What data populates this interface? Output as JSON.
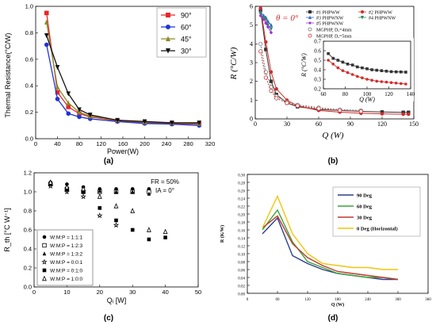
{
  "chart_data": [
    {
      "id": "a",
      "type": "line",
      "panel_label": "(a)",
      "xlabel": "Power(W)",
      "ylabel": "Thermal Resistance(°C/W)",
      "xlim": [
        0,
        320
      ],
      "ylim": [
        0.0,
        1.0
      ],
      "xticks": [
        "0",
        "40",
        "80",
        "120",
        "160",
        "200",
        "240",
        "280",
        "320"
      ],
      "yticks": [
        "0.0",
        "0.2",
        "0.4",
        "0.6",
        "0.8",
        "1.0"
      ],
      "legend_position": "top-right",
      "grid": false,
      "series": [
        {
          "name": "90°",
          "color": "#e8262a",
          "marker": "square",
          "x": [
            20,
            40,
            60,
            80,
            100,
            150,
            200,
            250,
            300
          ],
          "y": [
            0.95,
            0.35,
            0.24,
            0.19,
            0.165,
            0.135,
            0.12,
            0.115,
            0.11
          ]
        },
        {
          "name": "60°",
          "color": "#1f35d6",
          "marker": "circle",
          "x": [
            20,
            40,
            60,
            80,
            100,
            150,
            200,
            250,
            300
          ],
          "y": [
            0.71,
            0.3,
            0.19,
            0.165,
            0.15,
            0.13,
            0.115,
            0.11,
            0.1
          ]
        },
        {
          "name": "45°",
          "color": "#8a8a2a",
          "marker": "triangle-up",
          "x": [
            20,
            40,
            60,
            80,
            100,
            150,
            200,
            250,
            300
          ],
          "y": [
            0.88,
            0.39,
            0.27,
            0.2,
            0.17,
            0.14,
            0.125,
            0.12,
            0.115
          ]
        },
        {
          "name": "30°",
          "color": "#111111",
          "marker": "triangle-down",
          "x": [
            20,
            40,
            60,
            80,
            100,
            150,
            200,
            250,
            300
          ],
          "y": [
            0.78,
            0.54,
            0.34,
            0.22,
            0.18,
            0.14,
            0.13,
            0.12,
            0.12
          ]
        }
      ]
    },
    {
      "id": "b",
      "type": "line",
      "panel_label": "(b)",
      "xlabel": "Q (W)",
      "ylabel": "R (°C/W)",
      "annotation": "θ = 0°",
      "xlim": [
        0,
        150
      ],
      "ylim": [
        0,
        6
      ],
      "xticks": [
        "0",
        "30",
        "60",
        "90",
        "120",
        "150"
      ],
      "yticks": [
        "0",
        "1",
        "2",
        "3",
        "4",
        "5",
        "6"
      ],
      "legend_position": "top-right",
      "grid": false,
      "series": [
        {
          "name": "#1 PHPWW",
          "color": "#333333",
          "marker": "square",
          "x": [
            5,
            10,
            15,
            20,
            30,
            40,
            60,
            80,
            100,
            120,
            140,
            145
          ],
          "y": [
            5.8,
            3.7,
            2.0,
            1.3,
            0.85,
            0.65,
            0.5,
            0.45,
            0.4,
            0.37,
            0.35,
            0.35
          ]
        },
        {
          "name": "#2 PHPWW",
          "color": "#d32b2b",
          "marker": "circle",
          "x": [
            5,
            10,
            15,
            20,
            30,
            40,
            60,
            80,
            100,
            120,
            140,
            145
          ],
          "y": [
            5.9,
            4.1,
            2.5,
            1.6,
            1.0,
            0.7,
            0.45,
            0.36,
            0.3,
            0.27,
            0.25,
            0.25
          ]
        },
        {
          "name": "#3 PHPWNW",
          "color": "#3366cc",
          "marker": "triangle-up",
          "x": [
            5,
            8,
            10,
            12,
            15
          ],
          "y": [
            5.7,
            5.5,
            5.4,
            5.2,
            5.0
          ]
        },
        {
          "name": "#4 PHPWNW",
          "color": "#2e8b57",
          "marker": "triangle-down",
          "x": [
            5,
            8,
            10,
            12,
            15
          ],
          "y": [
            5.6,
            5.4,
            5.3,
            5.0,
            4.8
          ]
        },
        {
          "name": "#5 PHPWNW",
          "color": "#9b30d9",
          "marker": "diamond",
          "x": [
            5,
            8,
            10,
            12,
            15
          ],
          "y": [
            5.5,
            5.3,
            5.1,
            4.9,
            4.6
          ]
        },
        {
          "name": "MGPHP, Dₐ=4mm",
          "color": "#777777",
          "marker": "open-circle",
          "x": [
            5,
            10,
            15,
            20,
            30,
            40,
            60,
            80,
            100
          ],
          "y": [
            4.0,
            2.5,
            1.7,
            1.2,
            0.9,
            0.75,
            0.6,
            0.5,
            0.45
          ]
        },
        {
          "name": "MGPHP, Dₐ=5mm",
          "color": "#cc3333",
          "marker": "open-circle",
          "x": [
            5,
            10,
            15,
            20,
            30,
            40,
            60,
            80,
            100
          ],
          "y": [
            3.6,
            2.2,
            1.5,
            1.1,
            0.85,
            0.7,
            0.55,
            0.45,
            0.4
          ]
        }
      ],
      "inset": {
        "xlabel": "Q (W)",
        "ylabel": "R (°C/W)",
        "xlim": [
          55,
          145
        ],
        "ylim": [
          0.2,
          0.7
        ],
        "xticks": [
          "60",
          "80",
          "100",
          "120",
          "140"
        ],
        "yticks": [
          "0.2",
          "0.3",
          "0.4",
          "0.5",
          "0.6",
          "0.7"
        ],
        "series": [
          {
            "name": "#1 PHPWW",
            "color": "#333333",
            "marker": "square",
            "x": [
              60,
              65,
              70,
              75,
              80,
              85,
              90,
              95,
              100,
              105,
              110,
              115,
              120,
              125,
              130,
              135,
              140
            ],
            "y": [
              0.57,
              0.52,
              0.5,
              0.48,
              0.46,
              0.45,
              0.43,
              0.42,
              0.41,
              0.4,
              0.395,
              0.39,
              0.385,
              0.38,
              0.378,
              0.377,
              0.375
            ]
          },
          {
            "name": "#2 PHPWW",
            "color": "#d32b2b",
            "marker": "circle",
            "x": [
              60,
              65,
              70,
              75,
              80,
              85,
              90,
              95,
              100,
              105,
              110,
              115,
              120,
              125,
              130,
              135,
              140
            ],
            "y": [
              0.5,
              0.46,
              0.42,
              0.39,
              0.37,
              0.35,
              0.33,
              0.315,
              0.3,
              0.29,
              0.28,
              0.275,
              0.27,
              0.265,
              0.26,
              0.255,
              0.25
            ]
          }
        ]
      }
    },
    {
      "id": "c",
      "type": "scatter",
      "panel_label": "(c)",
      "xlabel": "Qᵢ [W]",
      "ylabel": "R_th [°C W⁻¹]",
      "annotations": [
        "FR = 50%",
        "IA = 0°"
      ],
      "xlim": [
        0,
        50
      ],
      "ylim": [
        0.0,
        1.2
      ],
      "xticks": [
        "0",
        "10",
        "20",
        "30",
        "40",
        "50"
      ],
      "yticks": [
        "0.0",
        "0.2",
        "0.4",
        "0.6",
        "0.8",
        "1.0",
        "1.2"
      ],
      "legend_position": "bottom-left",
      "grid": false,
      "series": [
        {
          "name": "W:M:P = 1:1:1",
          "marker": "filled-circle",
          "x": [
            5,
            10,
            15,
            20,
            25,
            30,
            35
          ],
          "y": [
            1.1,
            1.08,
            1.05,
            1.03,
            1.03,
            1.03,
            1.03
          ]
        },
        {
          "name": "W:M:P = 1:2:3",
          "marker": "open-square",
          "x": [
            5,
            10,
            15,
            20,
            25,
            30,
            35
          ],
          "y": [
            1.08,
            1.03,
            1.0,
            1.0,
            1.0,
            1.0,
            1.0
          ]
        },
        {
          "name": "W:M:P = 1:3:2",
          "marker": "filled-triangle",
          "x": [
            5,
            10,
            15,
            20,
            25,
            30,
            35
          ],
          "y": [
            1.1,
            1.06,
            1.02,
            1.01,
            1.0,
            1.0,
            0.98
          ]
        },
        {
          "name": "W:M:P = 0:0:1",
          "marker": "open-star",
          "x": [
            5,
            10,
            15,
            20,
            25
          ],
          "y": [
            1.06,
            1.0,
            0.95,
            0.75,
            0.65
          ]
        },
        {
          "name": "W:M:P = 0:1:0",
          "marker": "filled-square",
          "x": [
            5,
            10,
            15,
            20,
            25,
            30,
            35,
            40
          ],
          "y": [
            1.08,
            1.02,
            1.0,
            0.83,
            0.7,
            0.6,
            0.5,
            0.52
          ]
        },
        {
          "name": "W:M:P = 1:0:0",
          "marker": "open-triangle",
          "x": [
            5,
            10,
            15,
            20,
            25,
            30,
            35,
            40
          ],
          "y": [
            1.1,
            1.05,
            1.03,
            0.95,
            0.85,
            0.8,
            0.6,
            0.58
          ]
        }
      ]
    },
    {
      "id": "d",
      "type": "line",
      "panel_label": "(d)",
      "xlabel": "Q (W)",
      "ylabel": "R (K/W)",
      "xlim": [
        0,
        360
      ],
      "ylim": [
        0.0,
        0.3
      ],
      "xticks": [
        "0",
        "60",
        "120",
        "180",
        "240",
        "300",
        "360"
      ],
      "yticks": [
        "0.00",
        "0.02",
        "0.04",
        "0.06",
        "0.08",
        "0.10",
        "0.12",
        "0.14",
        "0.16",
        "0.18",
        "0.20",
        "0.22",
        "0.24",
        "0.26",
        "0.28",
        "0.30"
      ],
      "legend_position": "top-right",
      "grid": false,
      "series": [
        {
          "name": "90 Deg",
          "color": "#2b3f8f",
          "x": [
            30,
            60,
            90,
            120,
            150,
            180,
            210,
            240,
            270,
            300
          ],
          "y": [
            0.15,
            0.19,
            0.095,
            0.075,
            0.06,
            0.05,
            0.045,
            0.04,
            0.035,
            0.035
          ]
        },
        {
          "name": "60 Deg",
          "color": "#3aa33a",
          "x": [
            30,
            60,
            90,
            120,
            150,
            180,
            210,
            240,
            270,
            300
          ],
          "y": [
            0.16,
            0.21,
            0.13,
            0.08,
            0.065,
            0.05,
            0.045,
            0.04,
            0.04,
            0.035
          ]
        },
        {
          "name": "30 Deg",
          "color": "#c0392b",
          "x": [
            30,
            60,
            90,
            120,
            150,
            180,
            210,
            240,
            270,
            300
          ],
          "y": [
            0.165,
            0.195,
            0.125,
            0.09,
            0.07,
            0.055,
            0.05,
            0.045,
            0.04,
            0.035
          ]
        },
        {
          "name": "0 Deg (Horizontal)",
          "color": "#f1c40f",
          "x": [
            30,
            60,
            90,
            120,
            150,
            180,
            210,
            240,
            270,
            300
          ],
          "y": [
            0.165,
            0.245,
            0.15,
            0.1,
            0.075,
            0.07,
            0.065,
            0.065,
            0.06,
            0.06
          ]
        }
      ]
    }
  ]
}
